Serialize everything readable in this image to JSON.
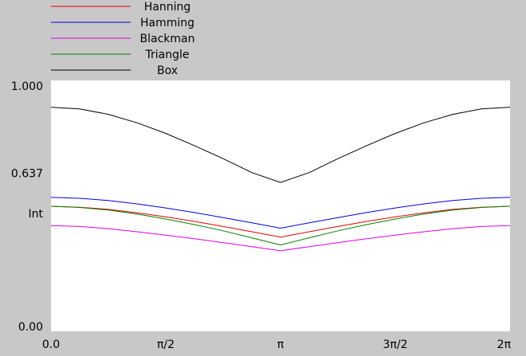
{
  "chart_data": {
    "type": "line",
    "title": "",
    "xlabel": "",
    "ylabel": "",
    "xlim": [
      0,
      6.283
    ],
    "ylim": [
      0,
      1
    ],
    "grid": false,
    "legend_position": "top-left",
    "x_ticks": [
      {
        "value": 0,
        "label": "0.0"
      },
      {
        "value": 1.5708,
        "label": "π/2"
      },
      {
        "value": 3.1416,
        "label": "π"
      },
      {
        "value": 4.7124,
        "label": "3π/2"
      },
      {
        "value": 6.2832,
        "label": "2π"
      }
    ],
    "y_ticks": [
      {
        "value": 1.0,
        "label": "1.000"
      },
      {
        "value": 0.637,
        "label": "0.637"
      },
      {
        "value": 0.47,
        "label": "Int"
      },
      {
        "value": 0.0,
        "label": "0.00"
      }
    ],
    "x": [
      0,
      0.3927,
      0.7854,
      1.1781,
      1.5708,
      1.9635,
      2.3562,
      2.7489,
      3.1416,
      3.5343,
      3.927,
      4.3197,
      4.7124,
      5.1051,
      5.4978,
      5.8905,
      6.2832
    ],
    "series": [
      {
        "name": "Hanning",
        "color": "#e00000",
        "values": [
          0.5,
          0.496,
          0.487,
          0.473,
          0.456,
          0.437,
          0.416,
          0.394,
          0.372,
          0.394,
          0.416,
          0.437,
          0.456,
          0.473,
          0.487,
          0.496,
          0.5
        ]
      },
      {
        "name": "Hamming",
        "color": "#0000e0",
        "values": [
          0.537,
          0.533,
          0.524,
          0.51,
          0.493,
          0.474,
          0.453,
          0.431,
          0.409,
          0.431,
          0.453,
          0.474,
          0.493,
          0.51,
          0.524,
          0.533,
          0.537
        ]
      },
      {
        "name": "Blackman",
        "color": "#e000e0",
        "values": [
          0.42,
          0.416,
          0.407,
          0.394,
          0.38,
          0.365,
          0.349,
          0.332,
          0.315,
          0.332,
          0.349,
          0.365,
          0.38,
          0.394,
          0.407,
          0.416,
          0.42
        ]
      },
      {
        "name": "Triangle",
        "color": "#008000",
        "values": [
          0.5,
          0.495,
          0.484,
          0.468,
          0.447,
          0.424,
          0.398,
          0.369,
          0.339,
          0.369,
          0.398,
          0.424,
          0.447,
          0.468,
          0.484,
          0.495,
          0.5
        ]
      },
      {
        "name": "Box",
        "color": "#000000",
        "values": [
          0.912,
          0.905,
          0.882,
          0.847,
          0.803,
          0.752,
          0.698,
          0.64,
          0.599,
          0.64,
          0.698,
          0.752,
          0.803,
          0.847,
          0.882,
          0.905,
          0.912
        ]
      }
    ]
  }
}
